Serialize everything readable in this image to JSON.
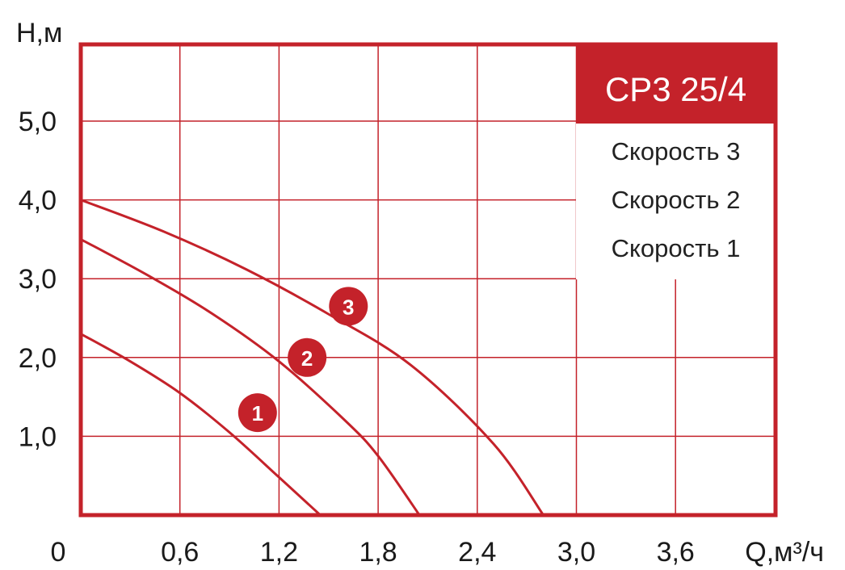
{
  "chart_data": {
    "type": "line",
    "title": "CP3 25/4",
    "xlabel": "Q,м³/ч",
    "ylabel": "H,м",
    "x_origin_label": "0",
    "xlim": [
      0,
      4.2
    ],
    "ylim": [
      0,
      6.0
    ],
    "x_ticks": [
      {
        "value": 0.6,
        "label": "0,6"
      },
      {
        "value": 1.2,
        "label": "1,2"
      },
      {
        "value": 1.8,
        "label": "1,8"
      },
      {
        "value": 2.4,
        "label": "2,4"
      },
      {
        "value": 3.0,
        "label": "3,0"
      },
      {
        "value": 3.6,
        "label": "3,6"
      }
    ],
    "y_ticks": [
      {
        "value": 1.0,
        "label": "1,0"
      },
      {
        "value": 2.0,
        "label": "2,0"
      },
      {
        "value": 3.0,
        "label": "3,0"
      },
      {
        "value": 4.0,
        "label": "4,0"
      },
      {
        "value": 5.0,
        "label": "5,0"
      }
    ],
    "grid": true,
    "legend_position": "top-right",
    "series": [
      {
        "name": "Скорость 1",
        "marker": "1",
        "marker_at": [
          1.07,
          1.3
        ],
        "x": [
          0,
          0.3,
          0.6,
          0.9,
          1.2,
          1.45
        ],
        "y": [
          2.3,
          1.95,
          1.55,
          1.05,
          0.48,
          0
        ]
      },
      {
        "name": "Скорость 2",
        "marker": "2",
        "marker_at": [
          1.37,
          2.0
        ],
        "x": [
          0,
          0.4,
          0.8,
          1.2,
          1.6,
          1.8,
          2.05
        ],
        "y": [
          3.5,
          3.05,
          2.55,
          1.95,
          1.2,
          0.75,
          0
        ]
      },
      {
        "name": "Скорость 3",
        "marker": "3",
        "marker_at": [
          1.62,
          2.65
        ],
        "x": [
          0,
          0.5,
          1.0,
          1.5,
          2.0,
          2.5,
          2.8
        ],
        "y": [
          4.0,
          3.6,
          3.12,
          2.55,
          1.9,
          0.9,
          0
        ]
      }
    ]
  },
  "colors": {
    "accent": "#c4222a",
    "legend_fill": "#c4222a",
    "text": "#1a1a1a"
  }
}
